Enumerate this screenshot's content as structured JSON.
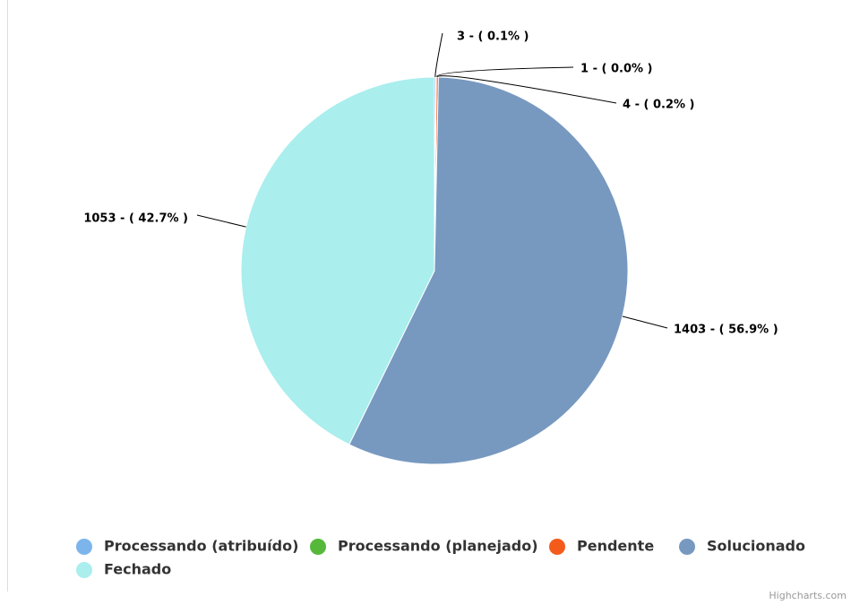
{
  "chart_data": {
    "type": "pie",
    "categories": [
      "Processando (atribuído)",
      "Processando (planejado)",
      "Pendente",
      "Solucionado",
      "Fechado"
    ],
    "values": [
      3,
      1,
      4,
      1403,
      1053
    ],
    "value_labels": [
      "3 - ( 0.1% )",
      "1 - ( 0.0% )",
      "4 - ( 0.2% )",
      "1403 - ( 56.9% )",
      "1053 - ( 42.7% )"
    ],
    "colors": [
      "#7cb5ec",
      "#55b83a",
      "#f45b1b",
      "#7799c0",
      "#aaeeee"
    ],
    "legend": "bottom",
    "credit": "Highcharts.com"
  }
}
